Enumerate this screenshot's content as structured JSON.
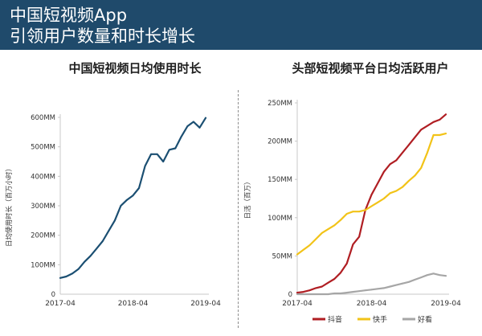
{
  "header": {
    "title_line1": "中国短视频App",
    "title_line2": "引领用户数量和时长增长"
  },
  "chart_data": [
    {
      "type": "line",
      "title": "中国短视频日均使用时长",
      "ylabel": "日均使用时长（百万小时）",
      "xlabel": "",
      "ylim": [
        0,
        600
      ],
      "yticks": [
        0,
        100,
        200,
        300,
        400,
        500,
        600
      ],
      "ytick_labels": [
        "0",
        "100MM",
        "200MM",
        "300MM",
        "400MM",
        "500MM",
        "600MM"
      ],
      "xtick_labels": [
        "2017-04",
        "2018-04",
        "2019-04"
      ],
      "grid": false,
      "colors": {
        "line": "#1b4f72",
        "axis": "#c8c8c8"
      },
      "series": [
        {
          "name": "",
          "x": [
            "2017-04",
            "2017-05",
            "2017-06",
            "2017-07",
            "2017-08",
            "2017-09",
            "2017-10",
            "2017-11",
            "2017-12",
            "2018-01",
            "2018-02",
            "2018-03",
            "2018-04",
            "2018-05",
            "2018-06",
            "2018-07",
            "2018-08",
            "2018-09",
            "2018-10",
            "2018-11",
            "2018-12",
            "2019-01",
            "2019-02",
            "2019-03",
            "2019-04"
          ],
          "values": [
            55,
            60,
            70,
            85,
            110,
            130,
            155,
            180,
            215,
            250,
            300,
            320,
            335,
            360,
            435,
            475,
            475,
            450,
            490,
            495,
            535,
            570,
            585,
            565,
            598
          ]
        }
      ]
    },
    {
      "type": "line",
      "title": "头部短视频平台日均活跃用户",
      "ylabel": "日活（百万）",
      "xlabel": "",
      "ylim": [
        0,
        250
      ],
      "yticks": [
        0,
        50,
        100,
        150,
        200,
        250
      ],
      "ytick_labels": [
        "0",
        "50MM",
        "100MM",
        "150MM",
        "200MM",
        "250MM"
      ],
      "xtick_labels": [
        "2017-04",
        "2018-04",
        "2019-04"
      ],
      "grid": false,
      "legend": "bottom",
      "colors": {
        "axis": "#c8c8c8"
      },
      "x": [
        "2017-04",
        "2017-05",
        "2017-06",
        "2017-07",
        "2017-08",
        "2017-09",
        "2017-10",
        "2017-11",
        "2017-12",
        "2018-01",
        "2018-02",
        "2018-03",
        "2018-04",
        "2018-05",
        "2018-06",
        "2018-07",
        "2018-08",
        "2018-09",
        "2018-10",
        "2018-11",
        "2018-12",
        "2019-01",
        "2019-02",
        "2019-03",
        "2019-04"
      ],
      "series": [
        {
          "name": "抖音",
          "color": "#b01e23",
          "values": [
            2,
            3,
            5,
            8,
            10,
            15,
            20,
            28,
            40,
            65,
            75,
            110,
            130,
            145,
            160,
            170,
            175,
            185,
            195,
            205,
            215,
            220,
            225,
            228,
            235
          ]
        },
        {
          "name": "快手",
          "color": "#f2c318",
          "values": [
            52,
            58,
            64,
            72,
            80,
            85,
            90,
            97,
            105,
            108,
            108,
            110,
            115,
            120,
            125,
            132,
            135,
            140,
            148,
            155,
            165,
            185,
            208,
            208,
            210
          ]
        },
        {
          "name": "好看",
          "color": "#a6a6a6",
          "values": [
            0,
            0,
            0,
            0,
            0,
            0,
            1,
            1,
            2,
            3,
            4,
            5,
            6,
            7,
            8,
            10,
            12,
            14,
            16,
            19,
            22,
            25,
            27,
            25,
            24
          ]
        }
      ]
    }
  ]
}
